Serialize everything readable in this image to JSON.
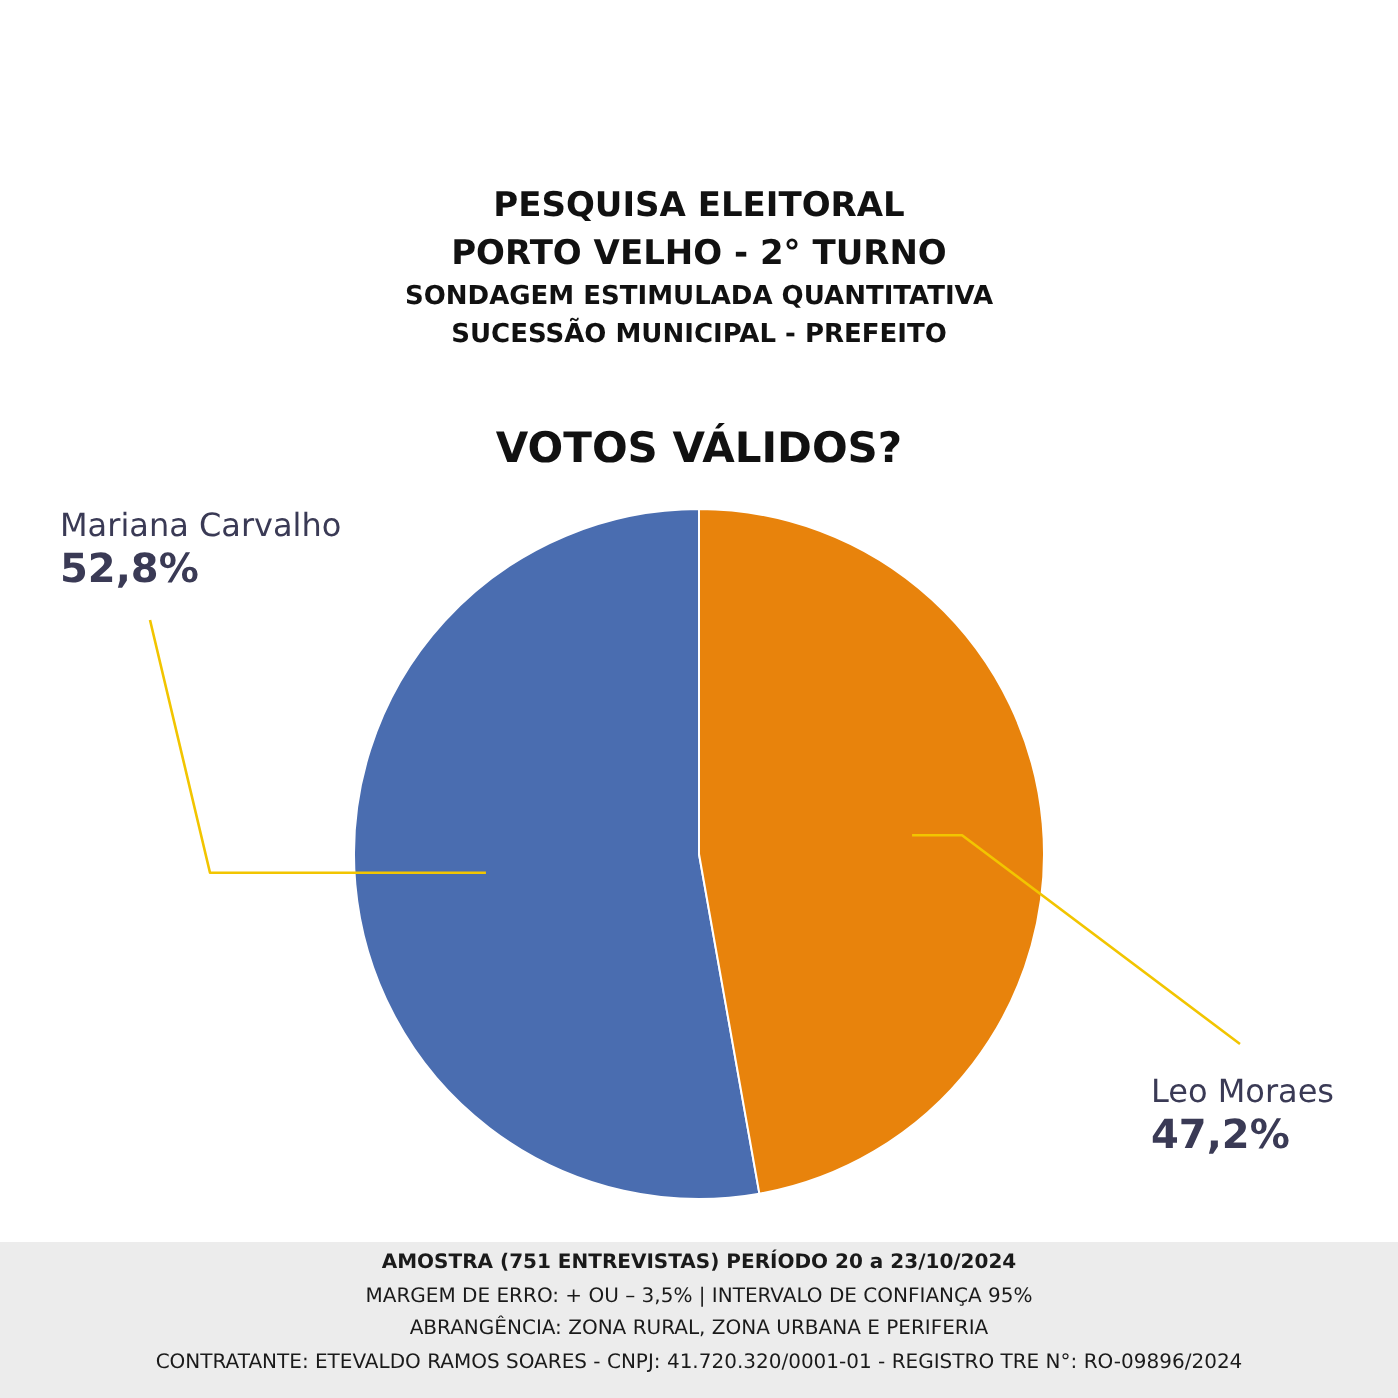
{
  "chart_data": {
    "type": "pie",
    "title": "PESQUISA ELEITORAL",
    "subtitle": "PORTO VELHO - 2° TURNO",
    "categories": [
      "Mariana Carvalho",
      "Leo Moraes"
    ],
    "values": [
      52.8,
      47.2
    ],
    "colors": [
      "#4a6db0",
      "#e8830c"
    ],
    "value_labels": [
      "52,8%",
      "47,2%"
    ],
    "annotations": [
      "SONDAGEM ESTIMULADA QUANTITATIVA",
      "SUCESSÃO MUNICIPAL - PREFEITO",
      "VOTOS VÁLIDOS?",
      "AMOSTRA (751 ENTREVISTAS) PERÍODO 20 a 23/10/2024",
      "MARGEM DE ERRO: + OU – 3,5% | INTERVALO DE CONFIANÇA 95%",
      "ABRANGÊNCIA: ZONA RURAL, ZONA URBANA E PERIFERIA",
      "CONTRATANTE: ETEVALDO RAMOS SOARES - CNPJ: 41.720.320/0001-01 - REGISTRO TRE N°: RO-09896/2024"
    ]
  }
}
